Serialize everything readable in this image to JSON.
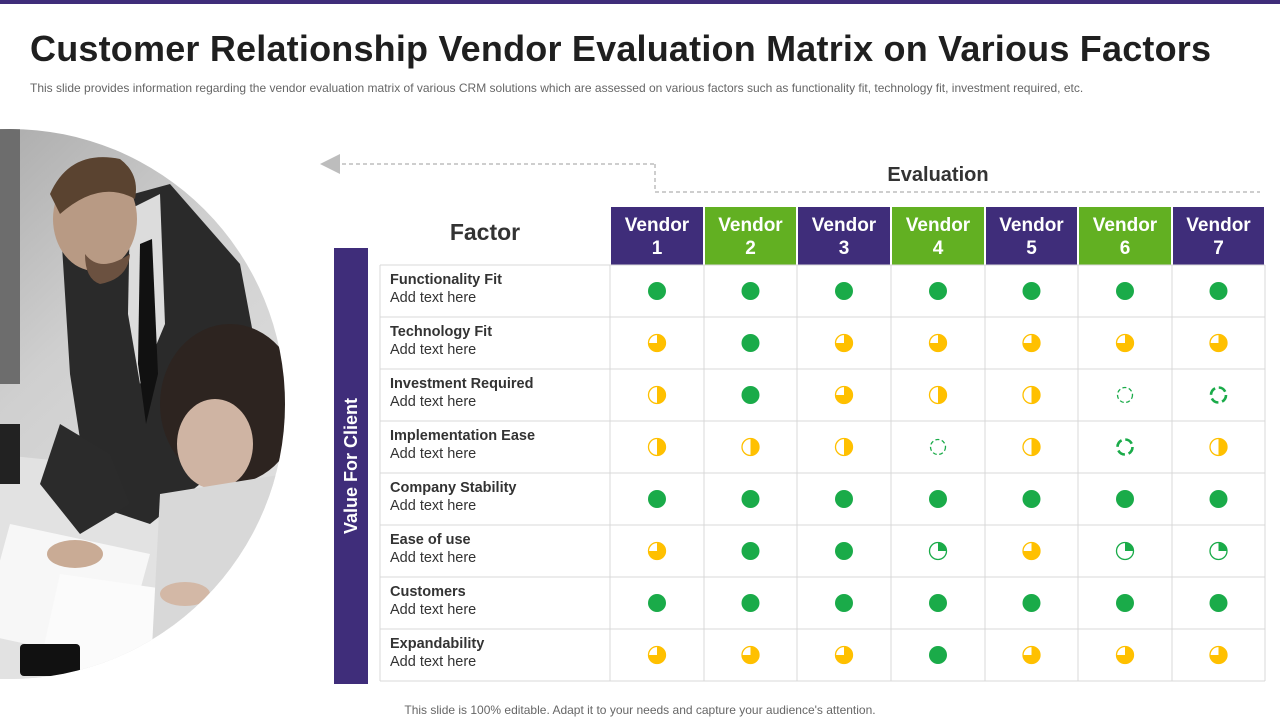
{
  "title": "Customer Relationship Vendor Evaluation Matrix on Various Factors",
  "subtitle": "This slide provides  information  regarding  the  vendor  evaluation  matrix of various  CRM  solutions  which  are  assessed on  various  factors  such as  functionality  fit,  technology  fit,  investment  required,  etc.",
  "evaluation_label": "Evaluation",
  "factor_label": "Factor",
  "value_label": "Value For Client",
  "footer": "This slide is 100% editable. Adapt it to your needs and capture your audience's attention.",
  "colors": {
    "purple": "#3f2d7a",
    "green": "#62b022",
    "dot_green": "#1aab49",
    "dot_yellow": "#ffc000",
    "grid": "#d9d9d9"
  },
  "vendors": [
    {
      "line1": "Vendor",
      "line2": "1",
      "color": "#3f2d7a"
    },
    {
      "line1": "Vendor",
      "line2": "2",
      "color": "#62b022"
    },
    {
      "line1": "Vendor",
      "line2": "3",
      "color": "#3f2d7a"
    },
    {
      "line1": "Vendor",
      "line2": "4",
      "color": "#62b022"
    },
    {
      "line1": "Vendor",
      "line2": "5",
      "color": "#3f2d7a"
    },
    {
      "line1": "Vendor",
      "line2": "6",
      "color": "#62b022"
    },
    {
      "line1": "Vendor",
      "line2": "7",
      "color": "#3f2d7a"
    }
  ],
  "factors": [
    {
      "name": "Functionality Fit",
      "sub": "Add text here",
      "ratings": [
        "full",
        "full",
        "full",
        "full",
        "full",
        "full",
        "full"
      ]
    },
    {
      "name": "Technology Fit",
      "sub": "Add text here",
      "ratings": [
        "three-quarter",
        "full",
        "three-quarter",
        "three-quarter",
        "three-quarter",
        "three-quarter",
        "three-quarter"
      ]
    },
    {
      "name": "Investment Required",
      "sub": "Add text here",
      "ratings": [
        "half",
        "full",
        "three-quarter",
        "half",
        "half",
        "empty-dashed",
        "empty-dashed-bold"
      ]
    },
    {
      "name": "Implementation Ease",
      "sub": "Add text here",
      "ratings": [
        "half",
        "half",
        "half",
        "empty-dashed",
        "half",
        "empty-dashed-bold",
        "half"
      ]
    },
    {
      "name": "Company  Stability",
      "sub": "Add text here",
      "ratings": [
        "full",
        "full",
        "full",
        "full",
        "full",
        "full",
        "full"
      ]
    },
    {
      "name": "Ease of use",
      "sub": "Add text here",
      "ratings": [
        "three-quarter",
        "full",
        "full",
        "quarter",
        "three-quarter",
        "quarter",
        "quarter"
      ]
    },
    {
      "name": "Customers",
      "sub": "Add text here",
      "ratings": [
        "full",
        "full",
        "full",
        "full",
        "full",
        "full",
        "full"
      ]
    },
    {
      "name": "Expandability",
      "sub": "Add text here",
      "ratings": [
        "three-quarter",
        "three-quarter",
        "three-quarter",
        "full",
        "three-quarter",
        "three-quarter",
        "three-quarter"
      ]
    }
  ]
}
